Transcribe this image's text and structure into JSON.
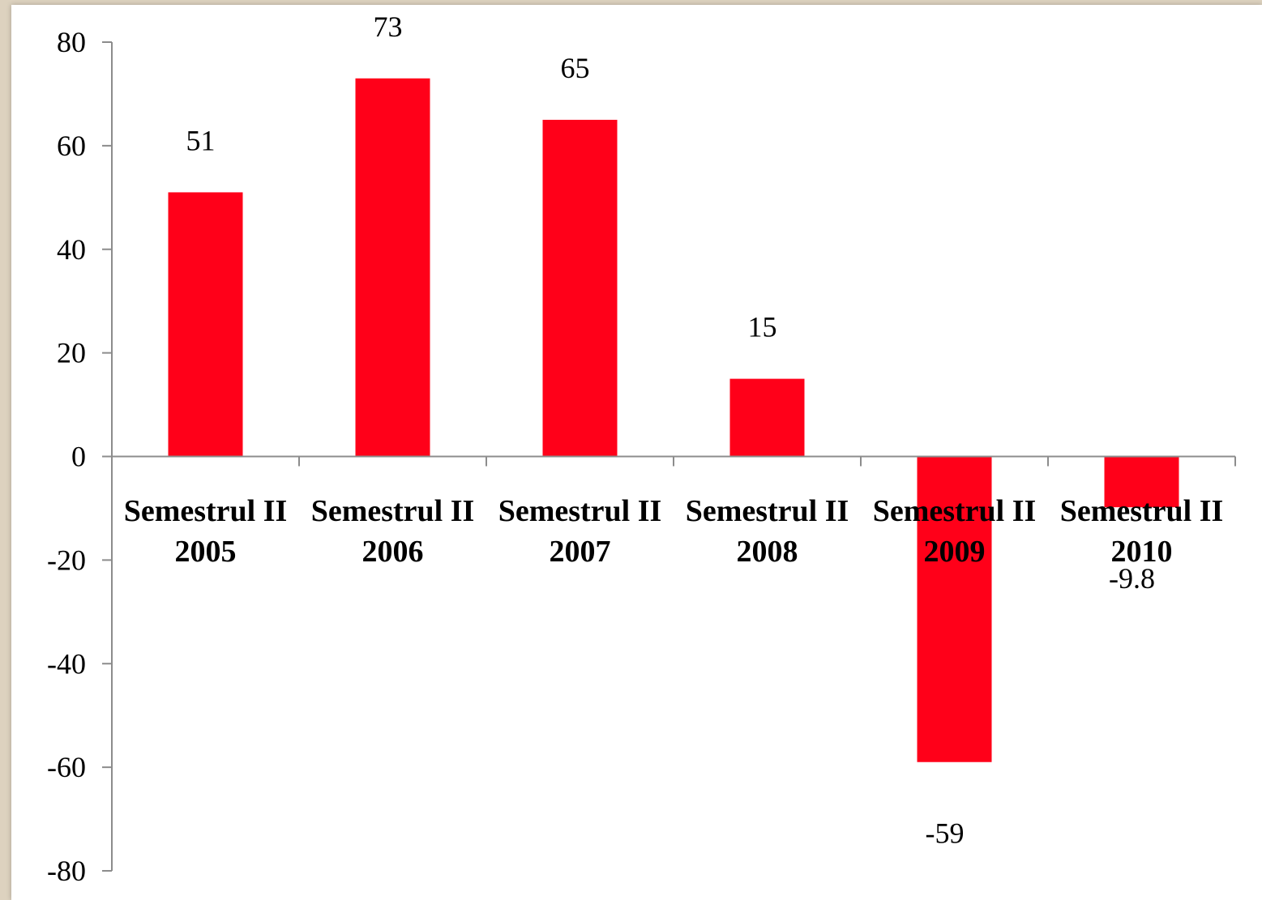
{
  "chart_data": {
    "type": "bar",
    "title": "",
    "xlabel": "",
    "ylabel": "",
    "categories": [
      [
        "Semestrul II",
        "2005"
      ],
      [
        "Semestrul II",
        "2006"
      ],
      [
        "Semestrul II",
        "2007"
      ],
      [
        "Semestrul II",
        "2008"
      ],
      [
        "Semestrul II",
        "2009"
      ],
      [
        "Semestrul II",
        "2010"
      ]
    ],
    "values": [
      51,
      73,
      65,
      15,
      -59,
      -9.8
    ],
    "data_labels": [
      "51",
      "73",
      "65",
      "15",
      "-59",
      "-9.8"
    ],
    "ylim": [
      -80,
      80
    ],
    "yticks": [
      80,
      60,
      40,
      20,
      0,
      -20,
      -40,
      -60,
      -80
    ],
    "bar_color": "#ff0019",
    "legend": "none",
    "grid": false
  }
}
